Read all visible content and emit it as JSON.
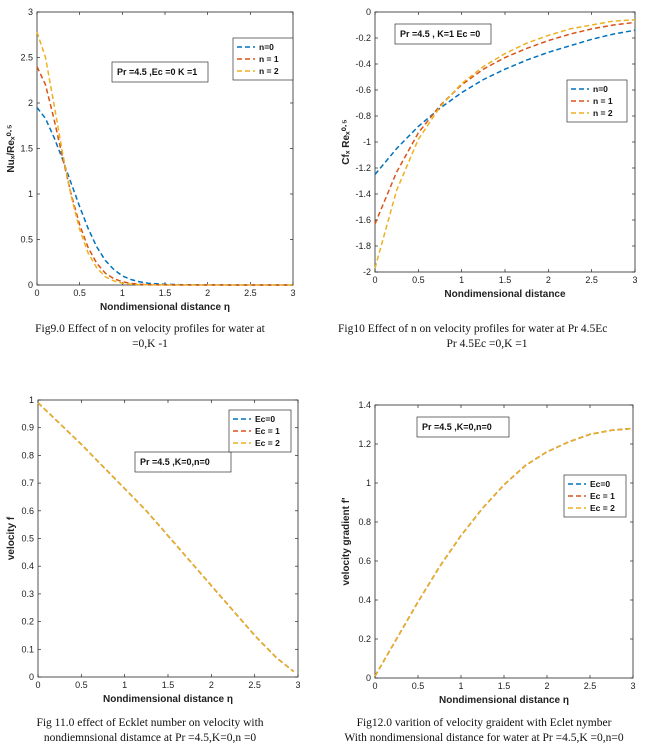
{
  "colors": {
    "s0": "#0072bd",
    "s1": "#d95319",
    "s2": "#edb120"
  },
  "captions": [
    {
      "lines": [
        "Fig9.0 Effect of  n on velocity profiles for water at",
        "=0,K -1"
      ]
    },
    {
      "lines": [
        "Fig10  Effect of  n on velocity profiles for water at Pr 4.5Ec",
        "Pr 4.5Ec =0,K =1"
      ]
    },
    {
      "lines": [
        "Fig 11.0  effect of Ecklet number on  velocity with",
        "nondiemnsional distamce  at Pr =4.5,K=0,n =0"
      ]
    },
    {
      "lines": [
        "Fig12.0  varition of velocity graident with Eclet nymber",
        "With nondimensional distance  for water at Pr =4.5,K =0,n=0"
      ]
    }
  ],
  "chart_data": [
    {
      "type": "line",
      "annotation": "Pr =4.5 ,Ec =0 K =1",
      "ylabel": "Nuₓ/Reₓ⁰·⁵",
      "xlabel": "Nondimensional distance η",
      "xlim": [
        0,
        3
      ],
      "ylim": [
        0,
        3
      ],
      "xticks": [
        "0",
        "0.5",
        "1",
        "1.5",
        "2",
        "2.5",
        "3"
      ],
      "yticks": [
        "0",
        "0.5",
        "1",
        "1.5",
        "2",
        "2.5",
        "3"
      ],
      "legend": "top-right",
      "series": [
        {
          "name": "n=0",
          "x": [
            0,
            0.1,
            0.2,
            0.3,
            0.4,
            0.5,
            0.6,
            0.7,
            0.8,
            0.9,
            1.0,
            1.1,
            1.2,
            1.3,
            1.5,
            1.7,
            2.0,
            2.5,
            3.0
          ],
          "y": [
            1.95,
            1.83,
            1.62,
            1.38,
            1.12,
            0.86,
            0.62,
            0.42,
            0.27,
            0.17,
            0.1,
            0.06,
            0.035,
            0.02,
            0.008,
            0.003,
            0.001,
            0,
            0
          ]
        },
        {
          "name": "n = 1",
          "x": [
            0,
            0.1,
            0.2,
            0.3,
            0.4,
            0.5,
            0.6,
            0.7,
            0.8,
            0.9,
            1.0,
            1.1,
            1.2,
            1.3,
            1.5,
            1.7,
            2.0,
            2.5,
            3.0
          ],
          "y": [
            2.4,
            2.2,
            1.82,
            1.4,
            1.0,
            0.66,
            0.41,
            0.24,
            0.13,
            0.07,
            0.035,
            0.018,
            0.009,
            0.004,
            0.001,
            0,
            0,
            0,
            0
          ]
        },
        {
          "name": "n = 2",
          "x": [
            0,
            0.1,
            0.2,
            0.3,
            0.4,
            0.5,
            0.6,
            0.7,
            0.8,
            0.9,
            1.0,
            1.1,
            1.2,
            1.3,
            1.5,
            1.7,
            2.0,
            2.5,
            3.0
          ],
          "y": [
            2.78,
            2.5,
            1.98,
            1.45,
            0.98,
            0.61,
            0.35,
            0.19,
            0.09,
            0.045,
            0.02,
            0.009,
            0.004,
            0.002,
            0,
            0,
            0,
            0,
            0
          ]
        }
      ]
    },
    {
      "type": "line",
      "annotation": "Pr =4.5 , K=1 Ec =0",
      "ylabel": "Cfₓ Reₓ⁰·⁵",
      "xlabel": "Nondimensional distance",
      "xlim": [
        0,
        3
      ],
      "ylim": [
        -2,
        0
      ],
      "xticks": [
        "0",
        "0.5",
        "1",
        "1.5",
        "2",
        "2.5",
        "3"
      ],
      "yticks": [
        "0",
        "-0.2",
        "-0.4",
        "-0.6",
        "-0.8",
        "-1",
        "-1.2",
        "-1.4",
        "-1.6",
        "-1.8",
        "-2"
      ],
      "legend": "right",
      "series": [
        {
          "name": "n=0",
          "x": [
            0,
            0.25,
            0.5,
            0.75,
            1.0,
            1.25,
            1.5,
            1.75,
            2.0,
            2.25,
            2.5,
            2.75,
            3.0
          ],
          "y": [
            -1.25,
            -1.05,
            -0.88,
            -0.74,
            -0.62,
            -0.52,
            -0.44,
            -0.37,
            -0.31,
            -0.26,
            -0.21,
            -0.17,
            -0.14
          ]
        },
        {
          "name": "n = 1",
          "x": [
            0,
            0.25,
            0.5,
            0.75,
            1.0,
            1.25,
            1.5,
            1.75,
            2.0,
            2.25,
            2.5,
            2.75,
            3.0
          ],
          "y": [
            -1.63,
            -1.23,
            -0.93,
            -0.72,
            -0.56,
            -0.44,
            -0.35,
            -0.28,
            -0.22,
            -0.17,
            -0.13,
            -0.1,
            -0.08
          ]
        },
        {
          "name": "n = 2",
          "x": [
            0,
            0.25,
            0.5,
            0.75,
            1.0,
            1.25,
            1.5,
            1.75,
            2.0,
            2.25,
            2.5,
            2.75,
            3.0
          ],
          "y": [
            -1.97,
            -1.37,
            -0.98,
            -0.73,
            -0.55,
            -0.42,
            -0.32,
            -0.24,
            -0.18,
            -0.13,
            -0.1,
            -0.07,
            -0.06
          ]
        }
      ]
    },
    {
      "type": "line",
      "annotation": "Pr =4.5 ,K=0,n=0",
      "ylabel": "velocity  f",
      "xlabel": "Nondimensional distance η",
      "xlim": [
        0,
        3
      ],
      "ylim": [
        0,
        1
      ],
      "xticks": [
        "0",
        "0.5",
        "1",
        "1.5",
        "2",
        "2.5",
        "3"
      ],
      "yticks": [
        "0",
        "0.1",
        "0.2",
        "0.3",
        "0.4",
        "0.5",
        "0.6",
        "0.7",
        "0.8",
        "0.9",
        "1"
      ],
      "legend": "top-right",
      "series": [
        {
          "name": "Ec=0",
          "x": [
            0,
            0.25,
            0.5,
            0.75,
            1.0,
            1.25,
            1.5,
            1.75,
            2.0,
            2.25,
            2.5,
            2.75,
            2.95
          ],
          "y": [
            0.99,
            0.915,
            0.84,
            0.76,
            0.68,
            0.6,
            0.51,
            0.42,
            0.33,
            0.24,
            0.15,
            0.07,
            0.02
          ]
        },
        {
          "name": "Ec = 1",
          "x": [
            0,
            0.25,
            0.5,
            0.75,
            1.0,
            1.25,
            1.5,
            1.75,
            2.0,
            2.25,
            2.5,
            2.75,
            2.95
          ],
          "y": [
            0.99,
            0.915,
            0.84,
            0.76,
            0.68,
            0.6,
            0.51,
            0.42,
            0.33,
            0.24,
            0.15,
            0.07,
            0.02
          ]
        },
        {
          "name": "Ec = 2",
          "x": [
            0,
            0.25,
            0.5,
            0.75,
            1.0,
            1.25,
            1.5,
            1.75,
            2.0,
            2.25,
            2.5,
            2.75,
            2.95
          ],
          "y": [
            0.99,
            0.915,
            0.84,
            0.76,
            0.68,
            0.6,
            0.51,
            0.42,
            0.33,
            0.24,
            0.15,
            0.07,
            0.02
          ]
        }
      ]
    },
    {
      "type": "line",
      "annotation": "Pr =4.5 ,K=0,n=0",
      "ylabel": "velocity gradient  f'",
      "xlabel": "Nondimensional distance η",
      "xlim": [
        0,
        3
      ],
      "ylim": [
        0,
        1.4
      ],
      "xticks": [
        "0",
        "0.5",
        "1",
        "1.5",
        "2",
        "2.5",
        "3"
      ],
      "yticks": [
        "0",
        "0.2",
        "0.4",
        "0.6",
        "0.8",
        "1",
        "1.2",
        "1.4"
      ],
      "legend": "right",
      "series": [
        {
          "name": "Ec=0",
          "x": [
            0,
            0.25,
            0.5,
            0.75,
            1.0,
            1.25,
            1.5,
            1.75,
            2.0,
            2.25,
            2.5,
            2.75,
            3.0
          ],
          "y": [
            0.01,
            0.2,
            0.39,
            0.57,
            0.73,
            0.87,
            0.99,
            1.09,
            1.16,
            1.21,
            1.25,
            1.27,
            1.28
          ]
        },
        {
          "name": "Ec = 1",
          "x": [
            0,
            0.25,
            0.5,
            0.75,
            1.0,
            1.25,
            1.5,
            1.75,
            2.0,
            2.25,
            2.5,
            2.75,
            3.0
          ],
          "y": [
            0.01,
            0.2,
            0.39,
            0.57,
            0.73,
            0.87,
            0.99,
            1.09,
            1.16,
            1.21,
            1.25,
            1.27,
            1.28
          ]
        },
        {
          "name": "Ec = 2",
          "x": [
            0,
            0.25,
            0.5,
            0.75,
            1.0,
            1.25,
            1.5,
            1.75,
            2.0,
            2.25,
            2.5,
            2.75,
            3.0
          ],
          "y": [
            0.01,
            0.2,
            0.39,
            0.57,
            0.73,
            0.87,
            0.99,
            1.09,
            1.16,
            1.21,
            1.25,
            1.27,
            1.28
          ]
        }
      ]
    }
  ]
}
